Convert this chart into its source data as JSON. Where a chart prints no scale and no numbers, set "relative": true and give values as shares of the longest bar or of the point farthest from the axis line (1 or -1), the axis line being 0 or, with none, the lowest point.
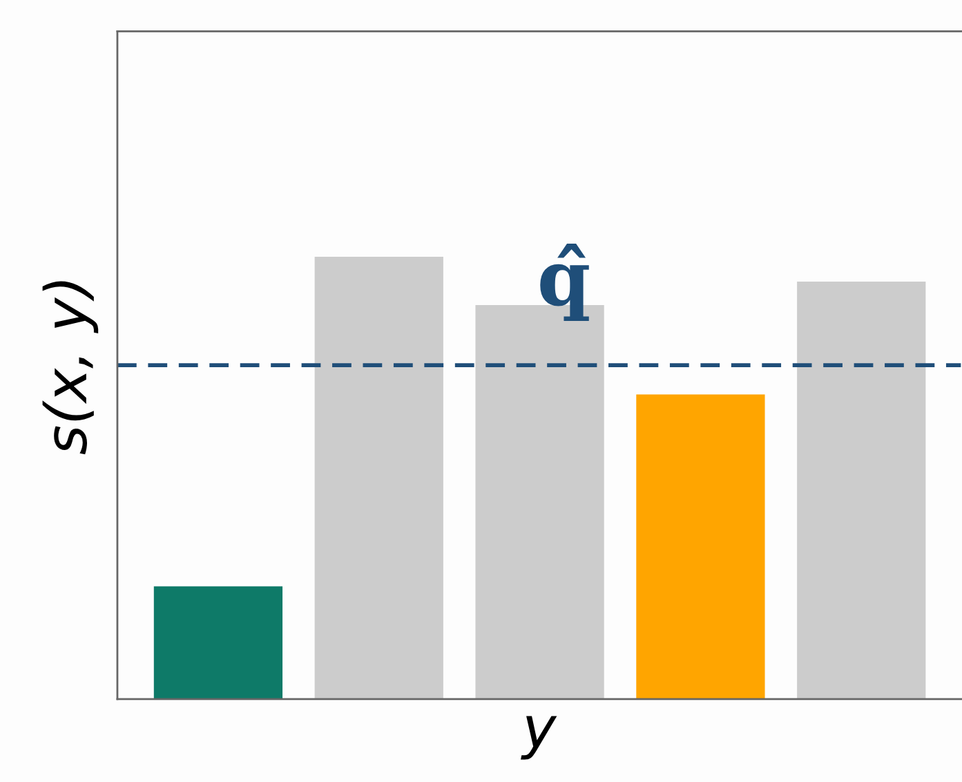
{
  "chart_data": {
    "type": "bar",
    "relative": true,
    "categories": [
      null,
      null,
      null,
      null,
      null
    ],
    "values": [
      0.255,
      1,
      0.891,
      0.689,
      0.944
    ],
    "colors": [
      "#0e7a68",
      "#cccccc",
      "#cccccc",
      "#ffa500",
      "#cccccc"
    ],
    "xlabel": "y",
    "ylabel": "s(x, y)",
    "ref_lines": [
      {
        "axis": "y",
        "value": 0.755,
        "label": "q̂",
        "color": "#1f4e79",
        "line_style": "dashed"
      }
    ],
    "grid": false,
    "legend": false,
    "tick_labels": false
  }
}
